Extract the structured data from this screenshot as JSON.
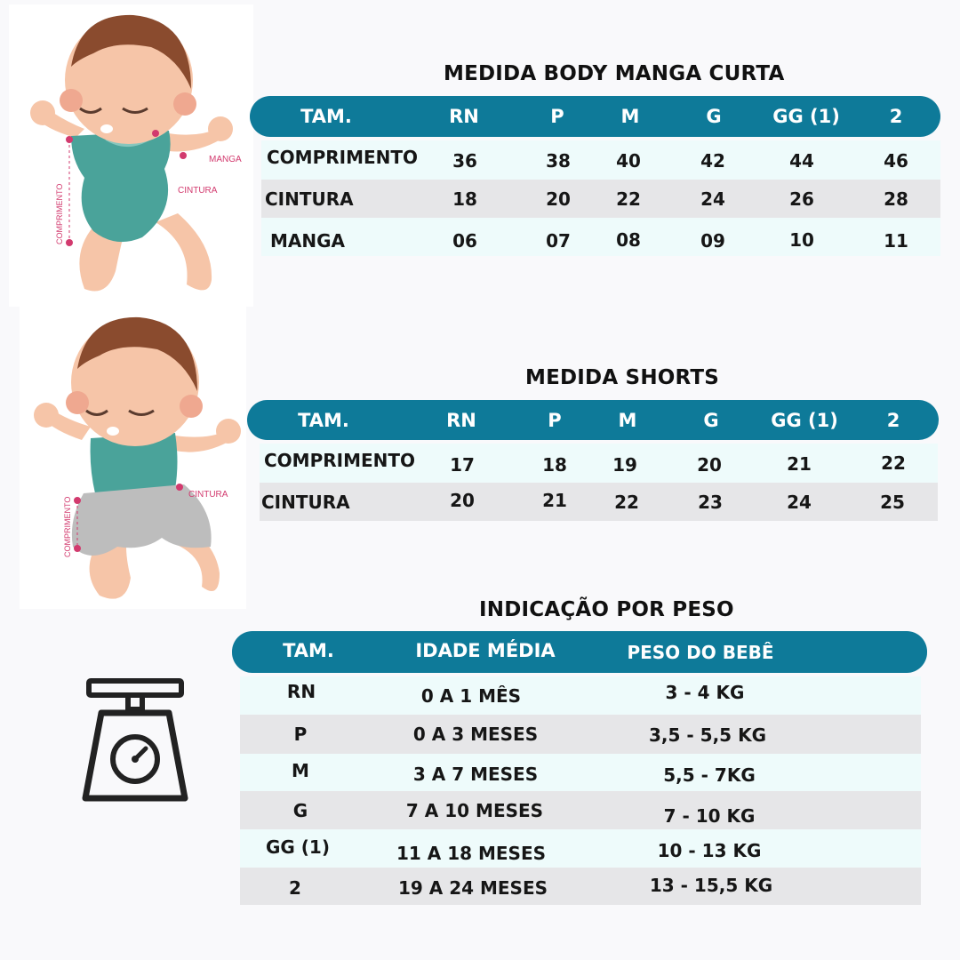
{
  "illustrations": {
    "body_labels": [
      "MANGA",
      "CINTURA",
      "COMPRIMENTO"
    ],
    "shorts_labels": [
      "CINTURA",
      "COMPRIMENTO"
    ]
  },
  "body_table": {
    "title": "MEDIDA BODY MANGA CURTA",
    "headers": [
      "TAM.",
      "RN",
      "P",
      "M",
      "G",
      "GG (1)",
      "2"
    ],
    "rows": [
      {
        "label": "COMPRIMENTO",
        "values": [
          "36",
          "38",
          "40",
          "42",
          "44",
          "46"
        ]
      },
      {
        "label": "CINTURA",
        "values": [
          "18",
          "20",
          "22",
          "24",
          "26",
          "28"
        ]
      },
      {
        "label": "MANGA",
        "values": [
          "06",
          "07",
          "08",
          "09",
          "10",
          "11"
        ]
      }
    ]
  },
  "shorts_table": {
    "title": "MEDIDA SHORTS",
    "headers": [
      "TAM.",
      "RN",
      "P",
      "M",
      "G",
      "GG (1)",
      "2"
    ],
    "rows": [
      {
        "label": "COMPRIMENTO",
        "values": [
          "17",
          "18",
          "19",
          "20",
          "21",
          "22"
        ]
      },
      {
        "label": "CINTURA",
        "values": [
          "20",
          "21",
          "22",
          "23",
          "24",
          "25"
        ]
      }
    ]
  },
  "weight_table": {
    "title": "INDICAÇÃO POR PESO",
    "headers": [
      "TAM.",
      "IDADE MÉDIA",
      "PESO DO BEBÊ"
    ],
    "rows": [
      [
        "RN",
        "0 A 1 MÊS",
        "3 - 4 KG"
      ],
      [
        "P",
        "0 A 3 MESES",
        "3,5 - 5,5 KG"
      ],
      [
        "M",
        "3 A 7 MESES",
        "5,5 - 7KG"
      ],
      [
        "G",
        "7 A 10 MESES",
        "7 - 10 KG"
      ],
      [
        "GG (1)",
        "11 A 18 MESES",
        "10 - 13 KG"
      ],
      [
        "2",
        "19 A 24 MESES",
        "13 - 15,5 KG"
      ]
    ]
  },
  "colors": {
    "header_teal": "#0e7a99",
    "row_light": "#eefbfb",
    "row_gray": "#e6e6e8",
    "measure_pink": "#d23a6e",
    "shirt_teal": "#4aa39a"
  }
}
